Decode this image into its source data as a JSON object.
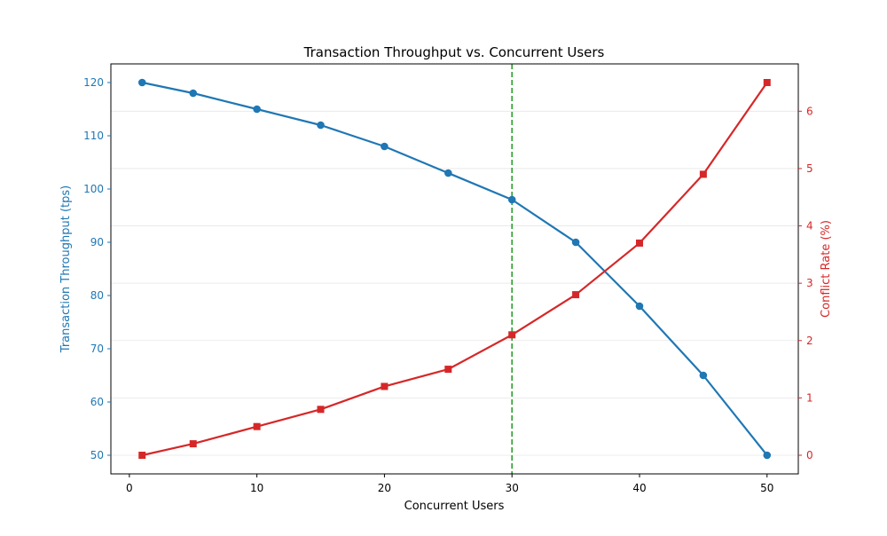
{
  "chart_data": {
    "type": "line",
    "title": "Transaction Throughput vs. Concurrent Users",
    "xlabel": "Concurrent Users",
    "x": [
      1,
      5,
      10,
      15,
      20,
      25,
      30,
      35,
      40,
      45,
      50
    ],
    "xlim": [
      -1.45,
      52.45
    ],
    "xticks": [
      0,
      10,
      20,
      30,
      40,
      50
    ],
    "grid": "horizontal, right axis only",
    "series": [
      {
        "axis": "left",
        "values": [
          120,
          118,
          115,
          112,
          108,
          103,
          98,
          90,
          78,
          65,
          50
        ],
        "color": "#1f77b4",
        "marker": "circle"
      },
      {
        "axis": "right",
        "values": [
          0,
          0.2,
          0.5,
          0.8,
          1.2,
          1.5,
          2.1,
          2.8,
          3.7,
          4.9,
          6.5
        ],
        "color": "#d62728",
        "marker": "square"
      }
    ],
    "y_left": {
      "label": "Transaction Throughput (tps)",
      "ylim": [
        46.5,
        123.5
      ],
      "ticks": [
        50,
        60,
        70,
        80,
        90,
        100,
        110,
        120
      ],
      "color": "#1f77b4"
    },
    "y_right": {
      "label": "Conflict Rate (%)",
      "ylim": [
        -0.325,
        6.825
      ],
      "ticks": [
        0,
        1,
        2,
        3,
        4,
        5,
        6
      ],
      "color": "#d62728"
    },
    "vline": {
      "x": 30,
      "color": "#2ca02c",
      "style": "dashed"
    }
  }
}
